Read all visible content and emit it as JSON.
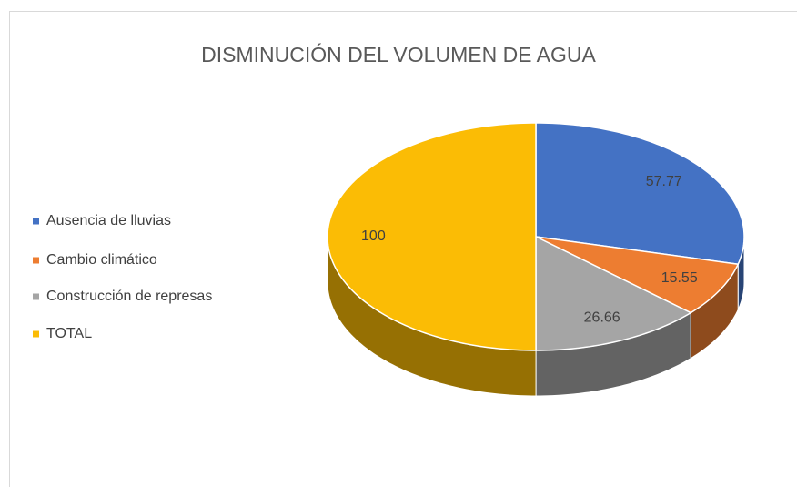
{
  "chart_data": {
    "type": "pie",
    "title": "DISMINUCIÓN DEL VOLUMEN DE AGUA",
    "categories": [
      "Ausencia de lluvias",
      "Cambio climático",
      "Construcción de represas",
      "TOTAL"
    ],
    "values": [
      57.77,
      15.55,
      26.66,
      100
    ],
    "colors": [
      "#4472c4",
      "#ed7d31",
      "#a5a5a5",
      "#fbbc05"
    ],
    "legend": "left"
  }
}
